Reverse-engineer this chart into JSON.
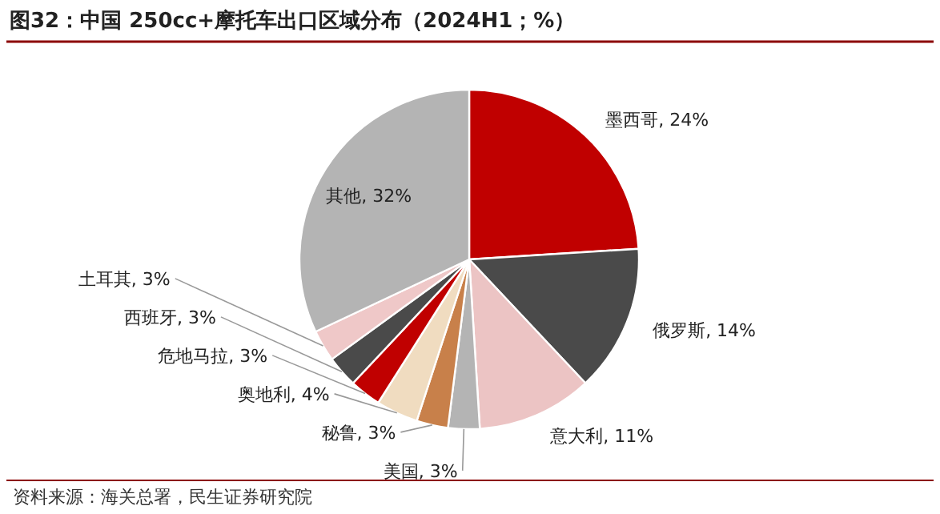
{
  "chart_data": {
    "type": "pie",
    "title": "图32：中国 250cc+摩托车出口区域分布（2024H1；%）",
    "categories": [
      "墨西哥",
      "俄罗斯",
      "意大利",
      "美国",
      "秘鲁",
      "奥地利",
      "危地马拉",
      "西班牙",
      "土耳其",
      "其他"
    ],
    "values": [
      24,
      14,
      11,
      3,
      3,
      4,
      3,
      3,
      3,
      32
    ],
    "value_labels": [
      "24%",
      "14%",
      "11%",
      "3%",
      "3%",
      "4%",
      "3%",
      "3%",
      "3%",
      "32%"
    ],
    "colors": [
      "#c00000",
      "#4a4a4a",
      "#ecc4c4",
      "#b4b4b4",
      "#c8804a",
      "#f0dcc0",
      "#c00000",
      "#4a4a4a",
      "#efc8c8",
      "#b4b4b4"
    ],
    "annotations": [
      "资料来源：海关总署，民生证券研究院"
    ]
  }
}
